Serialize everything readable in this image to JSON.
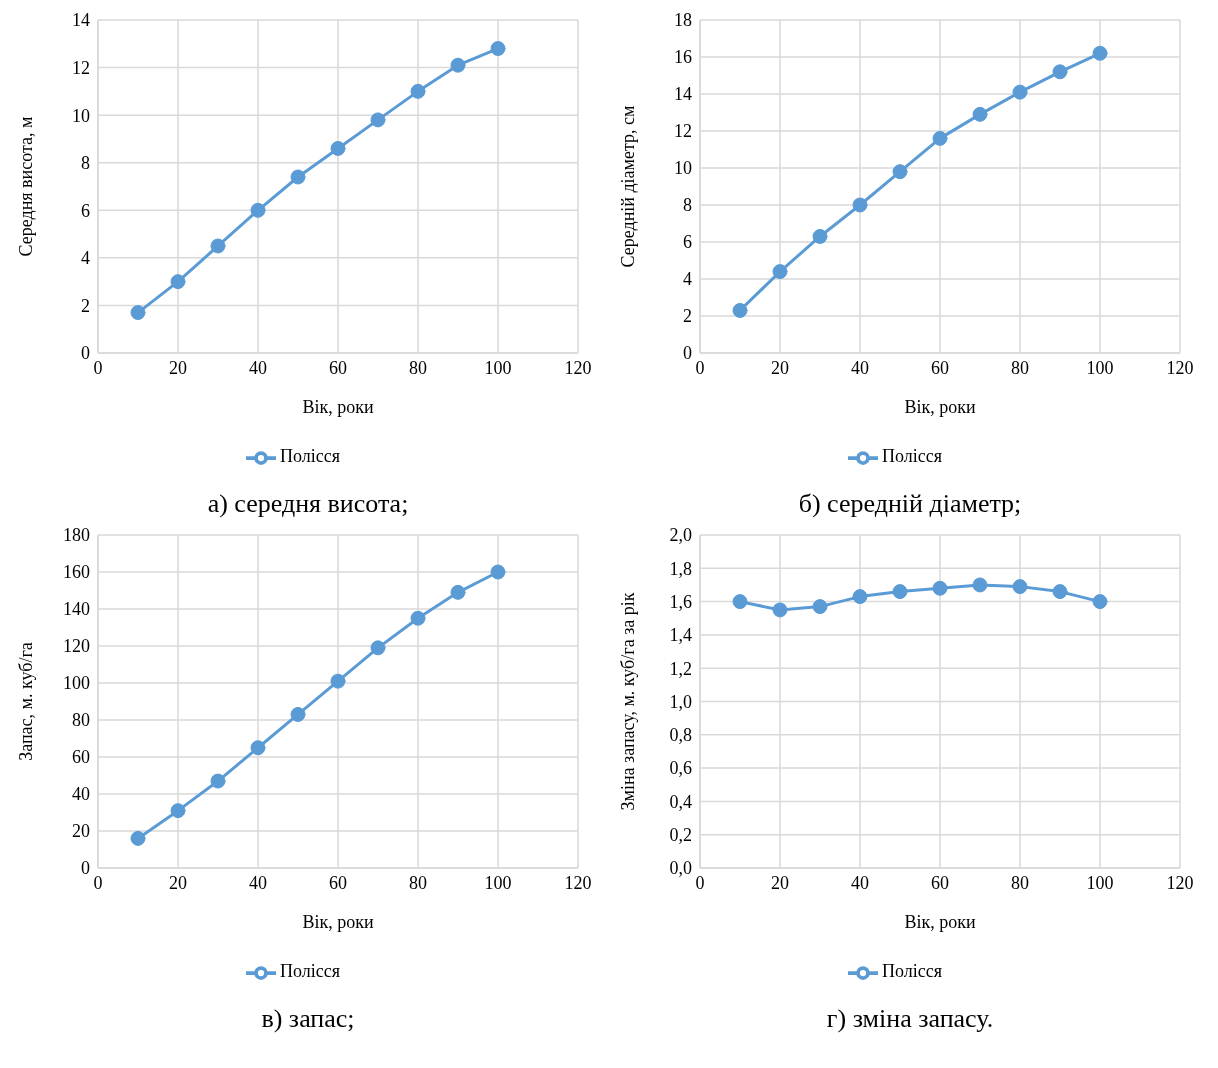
{
  "chart_data": [
    {
      "type": "line",
      "title": "а) середня висота;",
      "xlabel": "Вік, роки",
      "ylabel": "Середня висота, м",
      "x": [
        10,
        20,
        30,
        40,
        50,
        60,
        70,
        80,
        90,
        100
      ],
      "series": [
        {
          "name": "Полісся",
          "color": "#5b9bd5",
          "values": [
            1.7,
            3.0,
            4.5,
            6.0,
            7.4,
            8.6,
            9.8,
            11.0,
            12.1,
            12.8
          ]
        }
      ],
      "xlim": [
        0,
        120
      ],
      "xticks": [
        0,
        20,
        40,
        60,
        80,
        100,
        120
      ],
      "ylim": [
        0,
        14
      ],
      "yticks": [
        0,
        2,
        4,
        6,
        8,
        10,
        12,
        14
      ],
      "grid": true,
      "legend": "bottom",
      "marker": "circle",
      "line_style": "solid"
    },
    {
      "type": "line",
      "title": "б) середній діаметр;",
      "xlabel": "Вік, роки",
      "ylabel": "Середній діаметр, см",
      "x": [
        10,
        20,
        30,
        40,
        50,
        60,
        70,
        80,
        90,
        100
      ],
      "series": [
        {
          "name": "Полісся",
          "color": "#5b9bd5",
          "values": [
            2.3,
            4.4,
            6.3,
            8.0,
            9.8,
            11.6,
            12.9,
            14.1,
            15.2,
            16.2
          ]
        }
      ],
      "xlim": [
        0,
        120
      ],
      "xticks": [
        0,
        20,
        40,
        60,
        80,
        100,
        120
      ],
      "ylim": [
        0,
        18
      ],
      "yticks": [
        0,
        2,
        4,
        6,
        8,
        10,
        12,
        14,
        16,
        18
      ],
      "grid": true,
      "legend": "bottom",
      "marker": "circle",
      "line_style": "solid"
    },
    {
      "type": "line",
      "title": "в) запас;",
      "xlabel": "Вік, роки",
      "ylabel": "Запас, м. куб/га",
      "x": [
        10,
        20,
        30,
        40,
        50,
        60,
        70,
        80,
        90,
        100
      ],
      "series": [
        {
          "name": "Полісся",
          "color": "#5b9bd5",
          "values": [
            16,
            31,
            47,
            65,
            83,
            101,
            119,
            135,
            149,
            160
          ]
        }
      ],
      "xlim": [
        0,
        120
      ],
      "xticks": [
        0,
        20,
        40,
        60,
        80,
        100,
        120
      ],
      "ylim": [
        0,
        180
      ],
      "yticks": [
        0,
        20,
        40,
        60,
        80,
        100,
        120,
        140,
        160,
        180
      ],
      "grid": true,
      "legend": "bottom",
      "marker": "circle",
      "line_style": "solid"
    },
    {
      "type": "line",
      "title": "г) зміна запасу.",
      "xlabel": "Вік, роки",
      "ylabel": "Зміна запасу, м. куб/га за рік",
      "x": [
        10,
        20,
        30,
        40,
        50,
        60,
        70,
        80,
        90,
        100
      ],
      "series": [
        {
          "name": "Полісся",
          "color": "#5b9bd5",
          "values": [
            1.6,
            1.55,
            1.57,
            1.63,
            1.66,
            1.68,
            1.7,
            1.69,
            1.66,
            1.6
          ]
        }
      ],
      "xlim": [
        0,
        120
      ],
      "xticks": [
        0,
        20,
        40,
        60,
        80,
        100,
        120
      ],
      "ylim": [
        0,
        2
      ],
      "yticks": [
        {
          "value": 0,
          "label": "0,0"
        },
        {
          "value": 0.2,
          "label": "0,2"
        },
        {
          "value": 0.4,
          "label": "0,4"
        },
        {
          "value": 0.6,
          "label": "0,6"
        },
        {
          "value": 0.8,
          "label": "0,8"
        },
        {
          "value": 1,
          "label": "1,0"
        },
        {
          "value": 1.2,
          "label": "1,2"
        },
        {
          "value": 1.4,
          "label": "1,4"
        },
        {
          "value": 1.6,
          "label": "1,6"
        },
        {
          "value": 1.8,
          "label": "1,8"
        },
        {
          "value": 2,
          "label": "2,0"
        }
      ],
      "grid": true,
      "legend": "bottom",
      "marker": "circle",
      "line_style": "solid"
    }
  ]
}
